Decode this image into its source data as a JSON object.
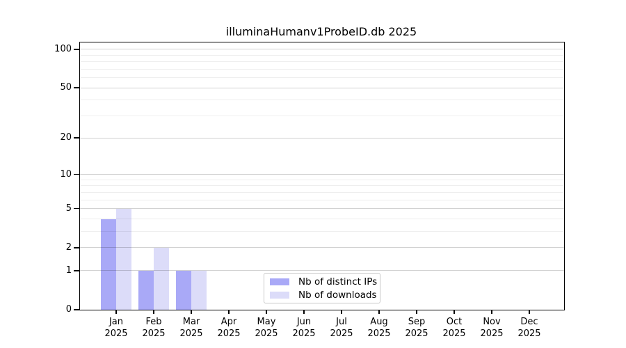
{
  "chart_data": {
    "type": "bar",
    "title": "illuminaHumanv1ProbeID.db 2025",
    "xlabel": "",
    "ylabel": "",
    "scale": "log1p",
    "ylim": [
      0,
      113
    ],
    "yticks": [
      0,
      1,
      2,
      5,
      10,
      20,
      50,
      100
    ],
    "minor_gridlines": [
      3,
      4,
      6,
      7,
      8,
      9,
      30,
      40,
      60,
      70,
      80,
      90
    ],
    "grid": "on",
    "categories": [
      "Jan",
      "Feb",
      "Mar",
      "Apr",
      "May",
      "Jun",
      "Jul",
      "Aug",
      "Sep",
      "Oct",
      "Nov",
      "Dec"
    ],
    "year_label": "2025",
    "series": [
      {
        "name": "Nb of distinct IPs",
        "color": "#a9a9f7",
        "values": [
          4,
          1,
          1,
          0,
          0,
          0,
          0,
          0,
          0,
          0,
          0,
          0
        ]
      },
      {
        "name": "Nb of downloads",
        "color": "#dcdcf9",
        "values": [
          5,
          2,
          1,
          0,
          0,
          0,
          0,
          0,
          0,
          0,
          0,
          0
        ]
      }
    ],
    "legend_position": "inside-bottom-center"
  }
}
